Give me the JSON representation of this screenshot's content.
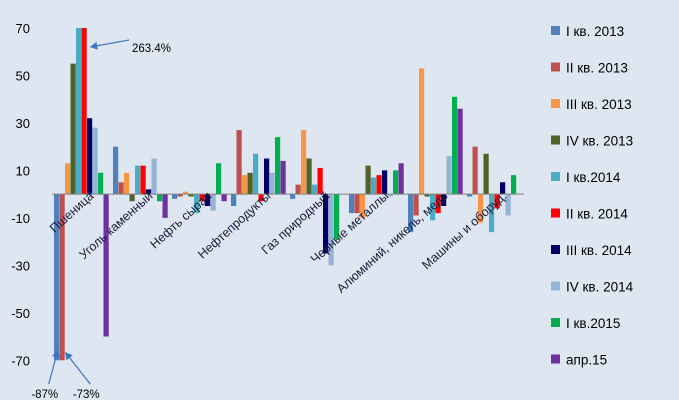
{
  "chart_data": {
    "type": "bar",
    "title": "",
    "xlabel": "",
    "ylabel": "",
    "ylim": [
      -75,
      70
    ],
    "yticks": [
      70,
      50,
      30,
      10,
      -10,
      -30,
      -50,
      -70
    ],
    "grid": false,
    "legend_position": "right",
    "categories": [
      "Пшеница",
      "Уголь каменный",
      "Нефть сырая",
      "Нефтепродукты",
      "Газ природный",
      "Черные металлы",
      "Алюминий, никель, медь",
      "Машины и оборуд."
    ],
    "series": [
      {
        "name": "I кв. 2013",
        "color": "#4f81bd",
        "values": [
          -70,
          20,
          -2,
          -5,
          -2,
          -8,
          -16,
          -1
        ]
      },
      {
        "name": "II кв. 2013",
        "color": "#c0504d",
        "values": [
          -70,
          5,
          -1,
          27,
          4,
          -8,
          -9,
          20
        ]
      },
      {
        "name": "III кв. 2013",
        "color": "#f79646",
        "values": [
          13,
          9,
          1,
          8,
          27,
          -10,
          53,
          -12
        ]
      },
      {
        "name": "IV кв. 2013",
        "color": "#4f6228",
        "values": [
          55,
          -3,
          -1,
          9,
          15,
          12,
          -1,
          17
        ]
      },
      {
        "name": "I кв.2014",
        "color": "#4bacc6",
        "values": [
          70,
          12,
          -8,
          17,
          4,
          7,
          -11,
          -16
        ]
      },
      {
        "name": "II кв. 2014",
        "color": "#ff0000",
        "values": [
          70,
          12,
          -3,
          -3,
          11,
          8,
          -8,
          -6
        ]
      },
      {
        "name": "III кв. 2014",
        "color": "#000066",
        "values": [
          32,
          2,
          -5,
          15,
          -25,
          10,
          -5,
          5
        ]
      },
      {
        "name": "IV кв. 2014",
        "color": "#95b3d7",
        "values": [
          28,
          15,
          -7,
          9,
          -30,
          -1,
          16,
          -9
        ]
      },
      {
        "name": "I кв.2015",
        "color": "#00b050",
        "values": [
          9,
          -3,
          13,
          24,
          -19,
          10,
          41,
          8
        ]
      },
      {
        "name": "апр.15",
        "color": "#7030a0",
        "values": [
          -60,
          -10,
          -3,
          14,
          0,
          13,
          36,
          0
        ]
      }
    ],
    "annotations": [
      {
        "label": "263.4%",
        "category": "Пшеница",
        "series": "II кв. 2014"
      },
      {
        "label": "-87%",
        "category": "Пшеница",
        "series": "I кв. 2013"
      },
      {
        "label": "-73%",
        "category": "Пшеница",
        "series": "II кв. 2013"
      }
    ]
  }
}
